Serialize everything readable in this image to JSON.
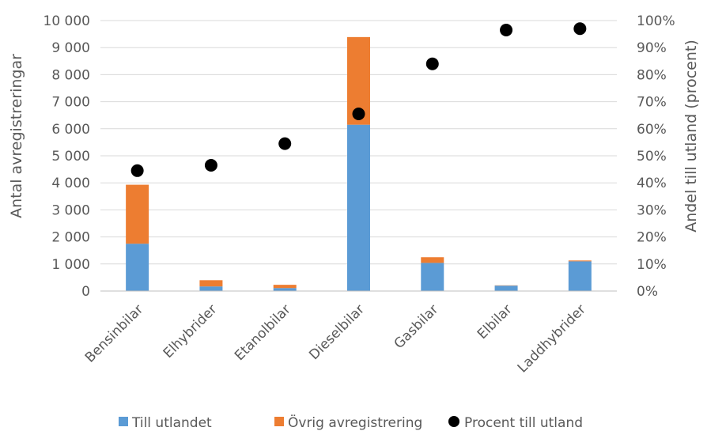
{
  "chart_data": {
    "type": "bar",
    "categories": [
      "Bensinbilar",
      "Elhybrider",
      "Etanolbilar",
      "Dieselbilar",
      "Gasbilar",
      "Elbilar",
      "Laddhybrider"
    ],
    "series": [
      {
        "name": "Till utlandet",
        "kind": "bar",
        "stack": "total",
        "axis": "left",
        "color": "#5B9BD5",
        "values": [
          1750,
          170,
          110,
          6150,
          1040,
          200,
          1100
        ]
      },
      {
        "name": "Övrig avregistrering",
        "kind": "bar",
        "stack": "total",
        "axis": "left",
        "color": "#ED7D31",
        "values": [
          2180,
          230,
          120,
          3240,
          210,
          10,
          30
        ]
      },
      {
        "name": "Procent till utland",
        "kind": "scatter",
        "axis": "right",
        "color": "#000000",
        "values": [
          44.5,
          46.5,
          54.5,
          65.5,
          84,
          96.5,
          97
        ]
      }
    ],
    "ylabel": "Antal avregistreringar",
    "y2label": "Andel till utland (procent)",
    "ylim": [
      0,
      10000
    ],
    "y2lim": [
      0,
      100
    ],
    "yticks": [
      "0",
      "1 000",
      "2 000",
      "3 000",
      "4 000",
      "5 000",
      "6 000",
      "7 000",
      "8 000",
      "9 000",
      "10 000"
    ],
    "y2ticks": [
      "0%",
      "10%",
      "20%",
      "30%",
      "40%",
      "50%",
      "60%",
      "70%",
      "80%",
      "90%",
      "100%"
    ],
    "grid": true,
    "legend_position": "bottom"
  }
}
